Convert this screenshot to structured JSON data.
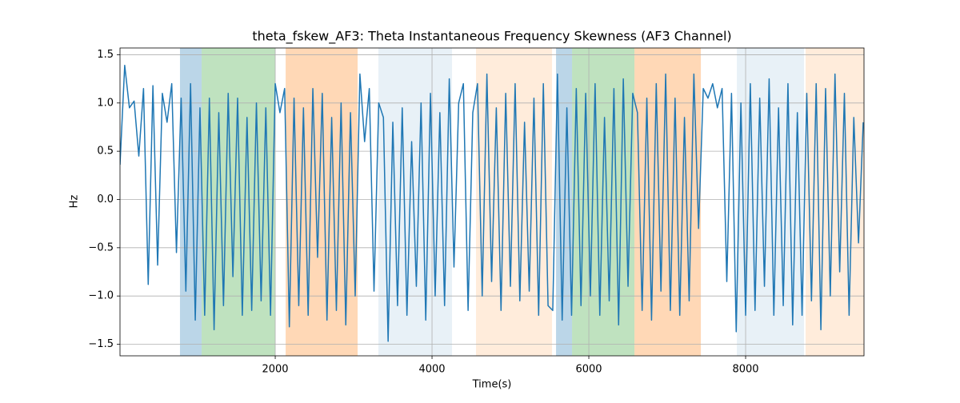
{
  "chart_data": {
    "type": "line",
    "title": "theta_fskew_AF3: Theta Instantaneous Frequency Skewness (AF3 Channel)",
    "x_label": "Time(s)",
    "y_label": "Hz",
    "xlim": [
      20,
      9510
    ],
    "ylim": [
      -1.62,
      1.57
    ],
    "xticks": [
      2000,
      4000,
      6000,
      8000
    ],
    "yticks": [
      {
        "value": -1.5,
        "label": "−1.5"
      },
      {
        "value": -1.0,
        "label": "−1.0"
      },
      {
        "value": -0.5,
        "label": "−0.5"
      },
      {
        "value": 0.0,
        "label": "0.0"
      },
      0.5,
      {
        "value": 1.0,
        "label": "1.0"
      },
      1.5
    ],
    "grid": true,
    "spans": [
      {
        "start": 785,
        "end": 1061,
        "color": "#1f77b4",
        "alpha": 0.3
      },
      {
        "start": 1061,
        "end": 2000,
        "color": "#2ca02c",
        "alpha": 0.3
      },
      {
        "start": 2133,
        "end": 3051,
        "color": "#ff7f0e",
        "alpha": 0.3
      },
      {
        "start": 3316,
        "end": 4255,
        "color": "#1f77b4",
        "alpha": 0.1
      },
      {
        "start": 4561,
        "end": 5531,
        "color": "#ff7f0e",
        "alpha": 0.15
      },
      {
        "start": 5582,
        "end": 5786,
        "color": "#1f77b4",
        "alpha": 0.3
      },
      {
        "start": 5786,
        "end": 6582,
        "color": "#2ca02c",
        "alpha": 0.3
      },
      {
        "start": 6582,
        "end": 7429,
        "color": "#ff7f0e",
        "alpha": 0.3
      },
      {
        "start": 7888,
        "end": 8745,
        "color": "#1f77b4",
        "alpha": 0.1
      },
      {
        "start": 8765,
        "end": 9510,
        "color": "#ff7f0e",
        "alpha": 0.15
      }
    ],
    "x": [
      20,
      80,
      140,
      200,
      260,
      320,
      380,
      440,
      500,
      560,
      620,
      680,
      740,
      800,
      860,
      920,
      980,
      1040,
      1100,
      1160,
      1220,
      1280,
      1340,
      1400,
      1460,
      1520,
      1580,
      1640,
      1700,
      1760,
      1820,
      1880,
      1940,
      2000,
      2060,
      2120,
      2180,
      2240,
      2300,
      2360,
      2420,
      2480,
      2540,
      2600,
      2660,
      2720,
      2780,
      2840,
      2900,
      2960,
      3020,
      3080,
      3140,
      3200,
      3260,
      3320,
      3380,
      3440,
      3500,
      3560,
      3620,
      3680,
      3740,
      3800,
      3860,
      3920,
      3980,
      4040,
      4100,
      4160,
      4220,
      4280,
      4340,
      4400,
      4460,
      4520,
      4580,
      4640,
      4700,
      4760,
      4820,
      4880,
      4940,
      5000,
      5060,
      5120,
      5180,
      5240,
      5300,
      5360,
      5420,
      5480,
      5540,
      5600,
      5660,
      5720,
      5780,
      5840,
      5900,
      5960,
      6020,
      6080,
      6140,
      6200,
      6260,
      6320,
      6380,
      6440,
      6500,
      6560,
      6620,
      6680,
      6740,
      6800,
      6860,
      6920,
      6980,
      7040,
      7100,
      7160,
      7220,
      7280,
      7340,
      7400,
      7460,
      7520,
      7580,
      7640,
      7700,
      7760,
      7820,
      7880,
      7940,
      8000,
      8060,
      8120,
      8180,
      8240,
      8300,
      8360,
      8420,
      8480,
      8540,
      8600,
      8660,
      8720,
      8780,
      8840,
      8900,
      8960,
      9020,
      9080,
      9140,
      9200,
      9260,
      9320,
      9380,
      9440,
      9500
    ],
    "series": [
      {
        "color": "#1f77b4",
        "values": [
          0.36,
          1.39,
          0.95,
          1.02,
          0.45,
          1.15,
          -0.88,
          1.18,
          -0.68,
          1.1,
          0.8,
          1.2,
          -0.55,
          1.05,
          -0.95,
          1.2,
          -1.25,
          0.95,
          -1.2,
          1.05,
          -1.35,
          0.9,
          -1.1,
          1.1,
          -0.8,
          1.05,
          -1.2,
          0.85,
          -1.15,
          1.0,
          -1.05,
          0.95,
          -1.2,
          1.2,
          0.9,
          1.15,
          -1.32,
          1.05,
          -1.1,
          0.95,
          -1.2,
          1.15,
          -0.6,
          1.1,
          -1.25,
          0.85,
          -1.15,
          1.0,
          -1.3,
          0.9,
          -1.0,
          1.3,
          0.6,
          1.15,
          -0.95,
          1.0,
          0.85,
          -1.47,
          0.8,
          -1.1,
          0.95,
          -1.2,
          0.6,
          -0.9,
          1.0,
          -1.25,
          1.1,
          -1.0,
          0.9,
          -1.1,
          1.25,
          -0.7,
          1.0,
          1.2,
          -1.15,
          0.9,
          1.2,
          -1.0,
          1.3,
          -0.85,
          0.95,
          -1.15,
          1.1,
          -0.9,
          1.2,
          -1.05,
          0.8,
          -0.95,
          1.05,
          -1.2,
          1.2,
          -1.1,
          -1.15,
          1.3,
          -1.25,
          0.95,
          -1.2,
          1.15,
          -1.1,
          1.1,
          -1.0,
          1.2,
          -1.2,
          0.85,
          -1.05,
          1.15,
          -1.3,
          1.25,
          -0.9,
          1.1,
          0.9,
          -1.15,
          1.05,
          -1.25,
          1.2,
          -0.95,
          1.3,
          -1.15,
          1.05,
          -1.2,
          0.85,
          -1.05,
          1.3,
          -0.3,
          1.15,
          1.05,
          1.2,
          0.95,
          1.15,
          -0.85,
          1.1,
          -1.37,
          1.0,
          -1.2,
          1.2,
          -1.15,
          1.05,
          -0.9,
          1.25,
          -1.2,
          0.95,
          -1.1,
          1.2,
          -1.3,
          0.9,
          -1.2,
          1.1,
          -1.05,
          1.2,
          -1.35,
          1.15,
          -1.0,
          1.3,
          -0.75,
          1.1,
          -1.2,
          0.85,
          -0.45,
          0.8
        ]
      }
    ]
  }
}
